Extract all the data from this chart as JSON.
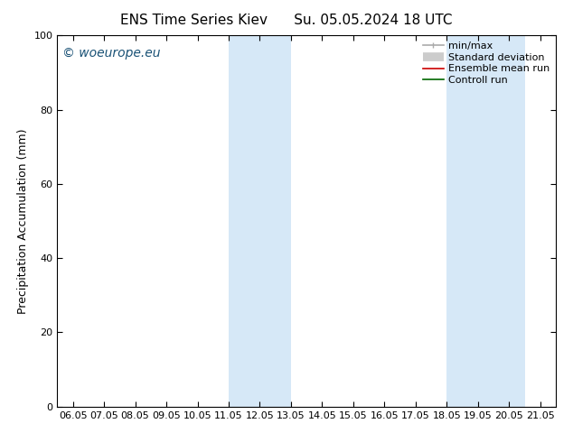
{
  "title_left": "ENS Time Series Kiev",
  "title_right": "Su. 05.05.2024 18 UTC",
  "ylabel": "Precipitation Accumulation (mm)",
  "ylim": [
    0,
    100
  ],
  "yticks": [
    0,
    20,
    40,
    60,
    80,
    100
  ],
  "xtick_labels": [
    "06.05",
    "07.05",
    "08.05",
    "09.05",
    "10.05",
    "11.05",
    "12.05",
    "13.05",
    "14.05",
    "15.05",
    "16.05",
    "17.05",
    "18.05",
    "19.05",
    "20.05",
    "21.05"
  ],
  "shaded_bands": [
    {
      "xmin": 5,
      "xmax": 7
    },
    {
      "xmin": 12,
      "xmax": 14.5
    }
  ],
  "band_color": "#d6e8f7",
  "watermark_text": "© woeurope.eu",
  "watermark_color": "#1a5276",
  "background_color": "#ffffff",
  "legend_items": [
    {
      "label": "min/max",
      "color": "#aaaaaa",
      "lw": 1.2
    },
    {
      "label": "Standard deviation",
      "color": "#cccccc",
      "lw": 7
    },
    {
      "label": "Ensemble mean run",
      "color": "#cc0000",
      "lw": 1.2
    },
    {
      "label": "Controll run",
      "color": "#006600",
      "lw": 1.2
    }
  ],
  "spine_color": "#000000",
  "tick_color": "#000000",
  "title_fontsize": 11,
  "label_fontsize": 9,
  "tick_fontsize": 8,
  "watermark_fontsize": 10,
  "legend_fontsize": 8
}
